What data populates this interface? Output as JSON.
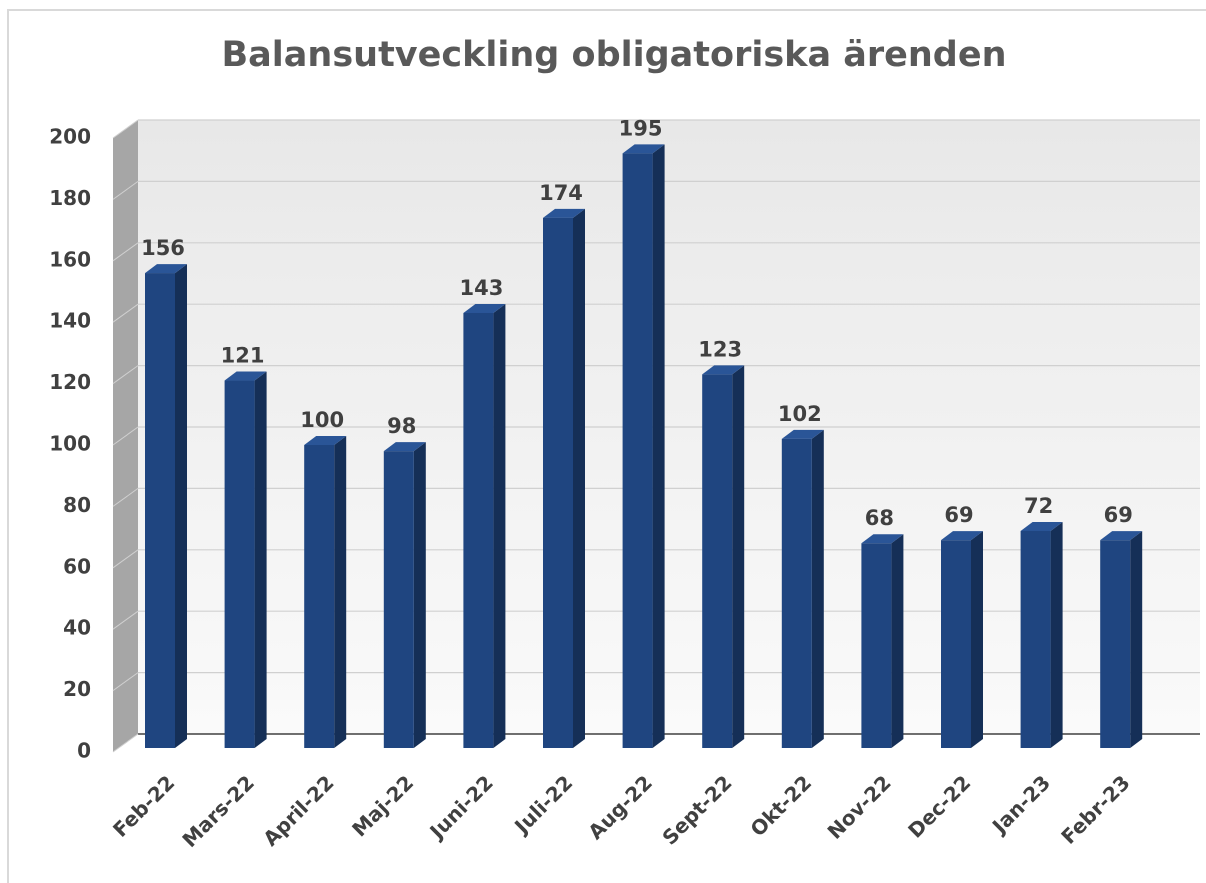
{
  "chart_data": {
    "type": "bar",
    "title": "Balansutveckling obligatoriska ärenden",
    "categories": [
      "Feb-22",
      "Mars-22",
      "April-22",
      "Maj-22",
      "Juni-22",
      "Juli-22",
      "Aug-22",
      "Sept-22",
      "Okt-22",
      "Nov-22",
      "Dec-22",
      "Jan-23",
      "Febr-23"
    ],
    "values": [
      156,
      121,
      100,
      98,
      143,
      174,
      195,
      123,
      102,
      68,
      69,
      72,
      69
    ],
    "color": "#1f4580",
    "ylim": [
      0,
      200
    ],
    "yticks": [
      0,
      20,
      40,
      60,
      80,
      100,
      120,
      140,
      160,
      180,
      200
    ],
    "grid": true
  }
}
